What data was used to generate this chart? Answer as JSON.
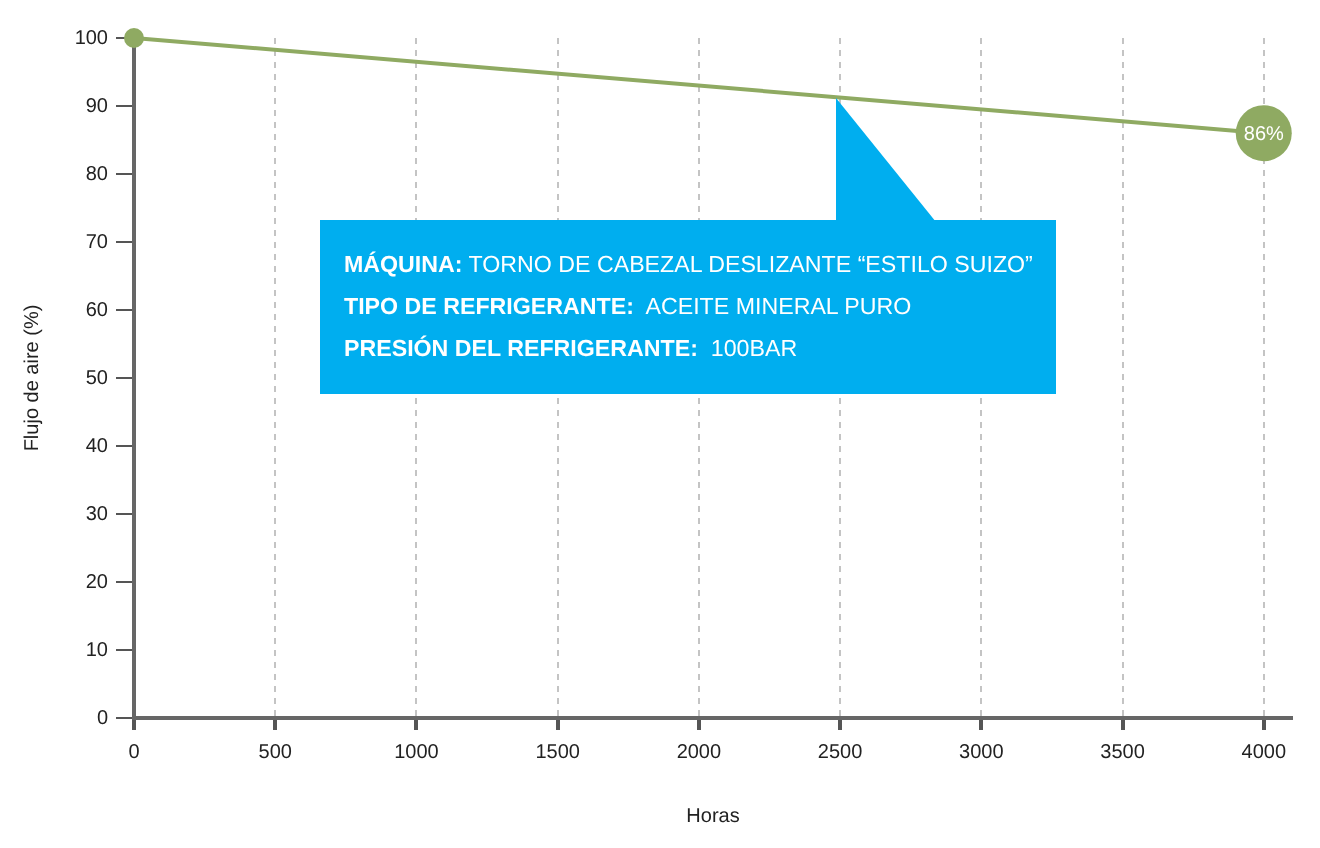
{
  "chart_data": {
    "type": "line",
    "xlabel": "Horas",
    "ylabel": "Flujo de aire (%)",
    "x": [
      0,
      4000
    ],
    "values": [
      100,
      86
    ],
    "color": "#8faa62",
    "value_labels": [
      null,
      "86%"
    ],
    "marker": "circle",
    "xlim": [
      0,
      4100
    ],
    "xticks": [
      0,
      500,
      1000,
      1500,
      2000,
      2500,
      3000,
      3500,
      4000
    ],
    "ylim": [
      0,
      100
    ],
    "yticks": [
      0,
      10,
      20,
      30,
      40,
      50,
      60,
      70,
      80,
      90,
      100
    ],
    "grid": "x",
    "annotations": [
      "MÁQUINA: TORNO DE CABEZAL DESLIZANTE “ESTILO SUIZO”\nTIPO DE REFRIGERANTE:  ACEITE MINERAL PURO\nPRESIÓN DEL REFRIGERANTE:  100BAR"
    ]
  }
}
